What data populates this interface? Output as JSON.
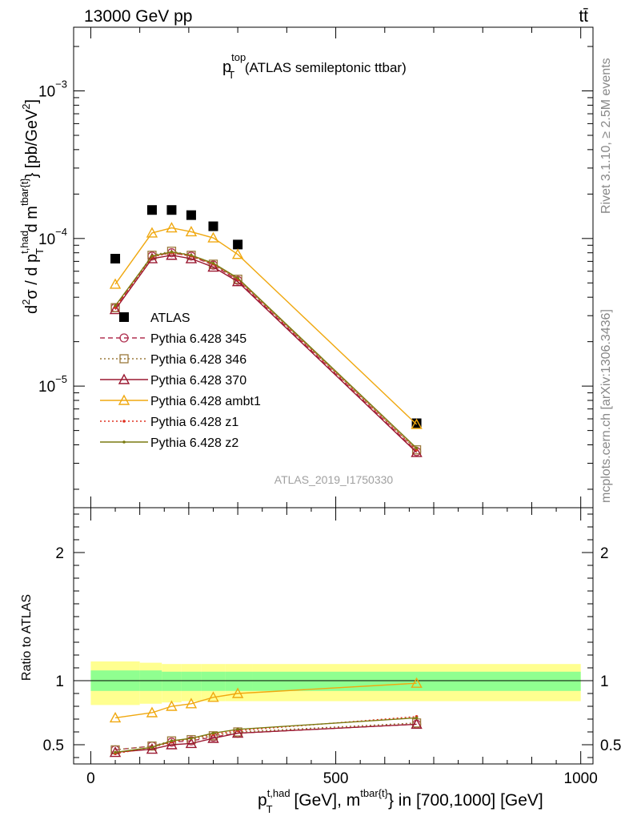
{
  "header": {
    "left_label": "13000 GeV pp",
    "right_label": "tt̄"
  },
  "side_labels": {
    "rivet": "Rivet 3.1.10, ≥ 2.5M events",
    "mcplots": "mcplots.cern.ch [arXiv:1306.3436]"
  },
  "analysis_id": "ATLAS_2019_I1750330",
  "chart_data": [
    {
      "type": "scatter",
      "title": {
        "base": "p",
        "sub": "T",
        "sup": "top",
        "rest": " (ATLAS semileptonic ttbar)"
      },
      "ylabel_parts": {
        "a": "d",
        "a_sup": "2",
        "b": "σ / d p",
        "b_sup": "t,had",
        "b_sub": "T",
        "c": " d m",
        "c_sup": "tbar{t}",
        "d": "} [pb/GeV",
        "d_sup": "2",
        "e": "]"
      },
      "yscale": "log",
      "ylim": [
        1.5e-06,
        0.0027
      ],
      "xlim": [
        -35,
        1025
      ],
      "ytick_labels": [
        {
          "value": 0.001,
          "base": "10",
          "exp": "−3"
        },
        {
          "value": 0.0001,
          "base": "10",
          "exp": "−4"
        },
        {
          "value": 1e-05,
          "base": "10",
          "exp": "−5"
        }
      ],
      "legend_placement": "left-middle",
      "series": [
        {
          "name": "ATLAS",
          "color": "#000000",
          "marker": "filled-square",
          "line": "none",
          "x": [
            50,
            125,
            165,
            205,
            250,
            300,
            665
          ],
          "y": [
            7.3e-05,
            0.000156,
            0.000156,
            0.000144,
            0.000121,
            9.1e-05,
            5.6e-06
          ]
        },
        {
          "name": "Pythia 6.428 345",
          "color": "#b03050",
          "marker": "open-circle",
          "line": "dashed",
          "x": [
            50,
            125,
            165,
            205,
            250,
            300,
            665
          ],
          "y": [
            3.4e-05,
            7.6e-05,
            8e-05,
            7.6e-05,
            6.6e-05,
            5.2e-05,
            3.6e-06
          ]
        },
        {
          "name": "Pythia 6.428 346",
          "color": "#9c7a3c",
          "marker": "open-square",
          "line": "dotted",
          "x": [
            50,
            125,
            165,
            205,
            250,
            300,
            665
          ],
          "y": [
            3.4e-05,
            7.7e-05,
            8.2e-05,
            7.7e-05,
            6.7e-05,
            5.3e-05,
            3.7e-06
          ]
        },
        {
          "name": "Pythia 6.428 370",
          "color": "#9a1830",
          "marker": "open-triangle",
          "line": "solid",
          "x": [
            50,
            125,
            165,
            205,
            250,
            300,
            665
          ],
          "y": [
            3.3e-05,
            7.3e-05,
            7.7e-05,
            7.3e-05,
            6.4e-05,
            5.1e-05,
            3.55e-06
          ]
        },
        {
          "name": "Pythia 6.428 ambt1",
          "color": "#f0a810",
          "marker": "open-triangle",
          "line": "solid",
          "x": [
            50,
            125,
            165,
            205,
            250,
            300,
            665
          ],
          "y": [
            4.9e-05,
            0.000109,
            0.000118,
            0.000111,
            0.000101,
            7.8e-05,
            5.5e-06
          ]
        },
        {
          "name": "Pythia 6.428 z1",
          "color": "#e03020",
          "marker": "dot",
          "line": "dotted",
          "x": [
            50,
            125,
            165,
            205,
            250,
            300,
            665
          ],
          "y": [
            3.4e-05,
            7.5e-05,
            8e-05,
            7.6e-05,
            6.7e-05,
            5.3e-05,
            3.7e-06
          ]
        },
        {
          "name": "Pythia 6.428 z2",
          "color": "#7a7a10",
          "marker": "dot",
          "line": "solid",
          "x": [
            50,
            125,
            165,
            205,
            250,
            300,
            665
          ],
          "y": [
            3.5e-05,
            7.6e-05,
            8.1e-05,
            7.7e-05,
            6.8e-05,
            5.4e-05,
            3.8e-06
          ]
        }
      ]
    },
    {
      "type": "line",
      "ylabel": "Ratio to ATLAS",
      "xlabel_parts": {
        "a": "p",
        "a_sup": "t,had",
        "a_sub": "T",
        "b": " [GeV], m",
        "b_sup": "tbar{t}",
        "c": "} in [700,1000] [GeV]"
      },
      "ylim": [
        0.35,
        2.35
      ],
      "xlim": [
        -35,
        1025
      ],
      "xtick_labels": [
        {
          "value": 0,
          "label": "0"
        },
        {
          "value": 500,
          "label": "500"
        },
        {
          "value": 1000,
          "label": "1000"
        }
      ],
      "ytick_labels": [
        {
          "value": 0.5,
          "label": "0.5"
        },
        {
          "value": 1,
          "label": "1"
        },
        {
          "value": 2,
          "label": "2"
        }
      ],
      "uncertainty_bands": {
        "edges": [
          0,
          100,
          145,
          185,
          225,
          275,
          330,
          1000
        ],
        "yellow_lo": [
          0.81,
          0.82,
          0.83,
          0.84,
          0.84,
          0.84,
          0.84
        ],
        "yellow_hi": [
          1.15,
          1.14,
          1.13,
          1.13,
          1.13,
          1.13,
          1.13
        ],
        "green_lo": [
          0.92,
          0.92,
          0.92,
          0.92,
          0.92,
          0.92,
          0.92
        ],
        "green_hi": [
          1.08,
          1.08,
          1.07,
          1.07,
          1.07,
          1.07,
          1.07
        ],
        "yellow_color": "#ffff90",
        "green_color": "#90ff90"
      },
      "series": [
        {
          "name": "Pythia 6.428 345",
          "color": "#b03050",
          "marker": "open-circle",
          "line": "dashed",
          "x": [
            50,
            125,
            165,
            205,
            250,
            300,
            665
          ],
          "y": [
            0.46,
            0.49,
            0.52,
            0.53,
            0.56,
            0.59,
            0.66
          ]
        },
        {
          "name": "Pythia 6.428 346",
          "color": "#9c7a3c",
          "marker": "open-square",
          "line": "dotted",
          "x": [
            50,
            125,
            165,
            205,
            250,
            300,
            665
          ],
          "y": [
            0.46,
            0.49,
            0.53,
            0.54,
            0.57,
            0.6,
            0.67
          ]
        },
        {
          "name": "Pythia 6.428 370",
          "color": "#9a1830",
          "marker": "open-triangle",
          "line": "solid",
          "x": [
            50,
            125,
            165,
            205,
            250,
            300,
            665
          ],
          "y": [
            0.44,
            0.465,
            0.5,
            0.51,
            0.55,
            0.59,
            0.66
          ]
        },
        {
          "name": "Pythia 6.428 ambt1",
          "color": "#f0a810",
          "marker": "open-triangle",
          "line": "solid",
          "x": [
            50,
            125,
            165,
            205,
            250,
            300,
            665
          ],
          "y": [
            0.71,
            0.75,
            0.8,
            0.82,
            0.87,
            0.9,
            0.98
          ]
        },
        {
          "name": "Pythia 6.428 z1",
          "color": "#e03020",
          "marker": "dot",
          "line": "dotted",
          "x": [
            50,
            125,
            165,
            205,
            250,
            300,
            665
          ],
          "y": [
            0.43,
            0.48,
            0.52,
            0.55,
            0.58,
            0.61,
            0.72
          ]
        },
        {
          "name": "Pythia 6.428 z2",
          "color": "#7a7a10",
          "marker": "dot",
          "line": "solid",
          "x": [
            50,
            125,
            165,
            205,
            250,
            300,
            665
          ],
          "y": [
            0.44,
            0.48,
            0.53,
            0.55,
            0.59,
            0.62,
            0.71
          ]
        }
      ]
    }
  ]
}
